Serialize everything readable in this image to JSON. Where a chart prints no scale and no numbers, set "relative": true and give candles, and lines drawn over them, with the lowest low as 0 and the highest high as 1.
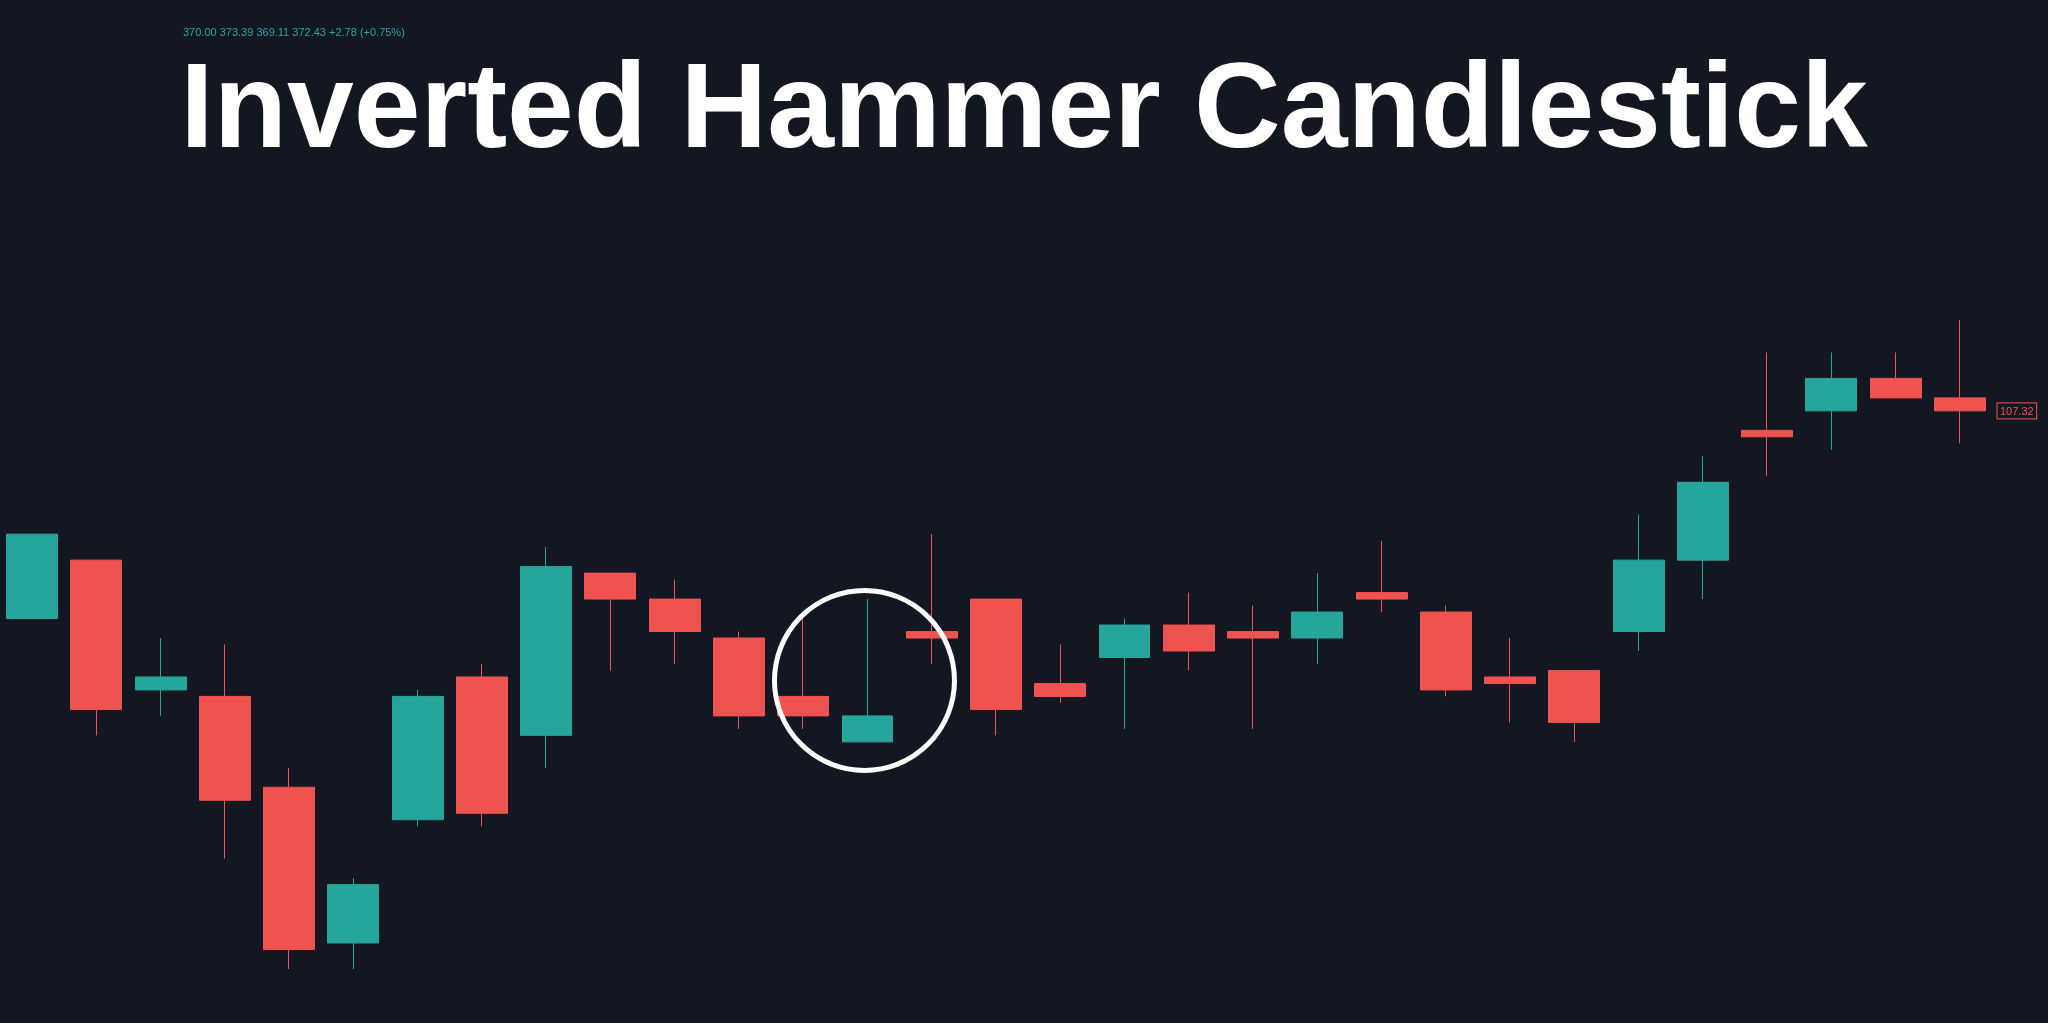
{
  "chart_data": {
    "type": "candlestick",
    "title": "Inverted Hammer Candlestick",
    "relative": true,
    "colors": [
      "#26a69a",
      "#ef5350",
      "#26a69a",
      "#ef5350",
      "#ef5350",
      "#26a69a",
      "#26a69a",
      "#ef5350",
      "#26a69a",
      "#ef5350",
      "#ef5350",
      "#ef5350",
      "#ef5350",
      "#26a69a",
      "#ef5350",
      "#ef5350",
      "#ef5350",
      "#26a69a",
      "#ef5350",
      "#ef5350",
      "#26a69a",
      "#ef5350",
      "#ef5350",
      "#ef5350",
      "#ef5350",
      "#26a69a",
      "#26a69a",
      "#ef5350",
      "#26a69a",
      "#ef5350",
      "#ef5350"
    ],
    "categories": [
      null,
      null,
      null,
      null,
      null,
      null,
      null,
      null,
      null,
      null,
      null,
      null,
      null,
      null,
      null,
      null,
      null,
      null,
      null,
      null,
      null,
      null,
      null,
      null,
      null,
      null,
      null,
      null,
      null,
      null,
      null
    ],
    "ohlc": [
      [
        0.54,
        0.67,
        0.54,
        0.67
      ],
      [
        0.63,
        0.63,
        0.36,
        0.4
      ],
      [
        0.43,
        0.51,
        0.39,
        0.45
      ],
      [
        0.42,
        0.5,
        0.17,
        0.26
      ],
      [
        0.28,
        0.31,
        0,
        0.03
      ],
      [
        0.04,
        0.14,
        0,
        0.13
      ],
      [
        0.23,
        0.43,
        0.22,
        0.42
      ],
      [
        0.45,
        0.47,
        0.22,
        0.24
      ],
      [
        0.36,
        0.65,
        0.31,
        0.62
      ],
      [
        0.61,
        0.61,
        0.46,
        0.57
      ],
      [
        0.57,
        0.6,
        0.47,
        0.52
      ],
      [
        0.51,
        0.52,
        0.37,
        0.39
      ],
      [
        0.42,
        0.54,
        0.37,
        0.39
      ],
      [
        0.35,
        0.57,
        0.35,
        0.39
      ],
      [
        0.52,
        0.67,
        0.47,
        0.51
      ],
      [
        0.57,
        0.57,
        0.36,
        0.4
      ],
      [
        0.44,
        0.5,
        0.41,
        0.42
      ],
      [
        0.48,
        0.54,
        0.37,
        0.53
      ],
      [
        0.53,
        0.58,
        0.46,
        0.49
      ],
      [
        0.52,
        0.56,
        0.37,
        0.51
      ],
      [
        0.51,
        0.61,
        0.47,
        0.55
      ],
      [
        0.58,
        0.66,
        0.55,
        0.57
      ],
      [
        0.55,
        0.56,
        0.42,
        0.43
      ],
      [
        0.45,
        0.51,
        0.38,
        0.44
      ],
      [
        0.46,
        0.46,
        0.35,
        0.38
      ],
      [
        0.52,
        0.7,
        0.49,
        0.63
      ],
      [
        0.63,
        0.79,
        0.57,
        0.75
      ],
      [
        0.83,
        0.95,
        0.76,
        0.82
      ],
      [
        0.86,
        0.95,
        0.8,
        0.91
      ],
      [
        0.91,
        0.95,
        0.88,
        0.88
      ],
      [
        0.88,
        1,
        0.81,
        0.86
      ]
    ],
    "annotations": [
      "370.00 373.39 369.11 372.43 +2.78 (+0.75%)",
      "107.32"
    ]
  }
}
